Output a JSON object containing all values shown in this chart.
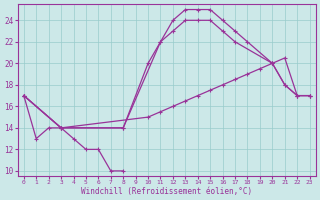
{
  "xlabel": "Windchill (Refroidissement éolien,°C)",
  "bg_color": "#cce8e8",
  "line_color": "#993399",
  "grid_color": "#99cccc",
  "xlim": [
    -0.5,
    23.5
  ],
  "ylim": [
    9.5,
    25.5
  ],
  "yticks": [
    10,
    12,
    14,
    16,
    18,
    20,
    22,
    24
  ],
  "xticks": [
    0,
    1,
    2,
    3,
    4,
    5,
    6,
    7,
    8,
    9,
    10,
    11,
    12,
    13,
    14,
    15,
    16,
    17,
    18,
    19,
    20,
    21,
    22,
    23
  ],
  "lines": [
    {
      "x": [
        0,
        1,
        2,
        3,
        4,
        5,
        6,
        7,
        8
      ],
      "y": [
        17,
        13,
        14,
        14,
        13,
        12,
        12,
        10,
        10
      ]
    },
    {
      "x": [
        0,
        3,
        8,
        11,
        12,
        13,
        14,
        15,
        16,
        17,
        18,
        20,
        21,
        22,
        23
      ],
      "y": [
        17,
        14,
        14,
        22,
        24,
        25,
        25,
        25,
        24,
        23,
        22,
        20,
        18,
        17,
        17
      ]
    },
    {
      "x": [
        0,
        3,
        8,
        10,
        11,
        12,
        13,
        14,
        15,
        16,
        17,
        20,
        21,
        22,
        23
      ],
      "y": [
        17,
        14,
        14,
        20,
        22,
        23,
        24,
        24,
        24,
        23,
        22,
        20,
        18,
        17,
        17
      ]
    },
    {
      "x": [
        0,
        3,
        10,
        11,
        12,
        13,
        14,
        15,
        16,
        17,
        18,
        19,
        20,
        21,
        22,
        23
      ],
      "y": [
        17,
        14,
        15,
        15.5,
        16,
        16.5,
        17,
        17.5,
        18,
        18.5,
        19,
        19.5,
        20,
        20.5,
        17,
        17
      ]
    }
  ]
}
